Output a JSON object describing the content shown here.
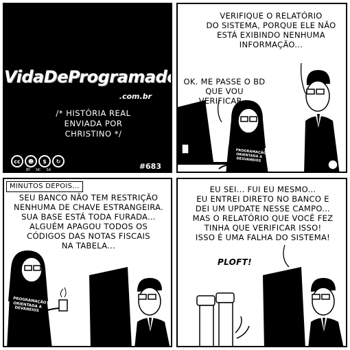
{
  "panel1": {
    "logo": "VidaDeProgramador",
    "domain": ".com.br",
    "story_lines": [
      "/* História real",
      "enviada por",
      "Christino */"
    ],
    "license": {
      "icons": [
        "cc-icon",
        "by-icon",
        "nc-icon",
        "sa-icon"
      ],
      "labels": [
        "BY",
        "NC",
        "SA"
      ]
    },
    "episode": "#683"
  },
  "panel2": {
    "boss_speech": [
      "Verifique o relatório",
      "do sistema, porque ele não",
      "está exibindo nenhuma",
      "informação..."
    ],
    "programmer_speech": [
      "Ok. Me passe o BD",
      "que vou verificar..."
    ],
    "shirt_text": [
      "Programação",
      "Orientada a",
      "Desvaneios"
    ]
  },
  "panel3": {
    "caption": "Minutos depois...",
    "speech": [
      "Seu banco não tem restrição",
      "nenhuma de chave estrangeira.",
      "Sua base está toda furada...",
      "Alguém apagou todos os",
      "códigos das notas fiscais",
      "na tabela..."
    ],
    "shirt_text": [
      "Programação",
      "Orientada a",
      "Devaneios"
    ]
  },
  "panel4": {
    "speech": [
      "Eu sei... Fui eu mesmo...",
      "Eu entrei direto no banco e",
      "dei um update nesse campo...",
      "Mas o relatório que você fez",
      "tinha que verificar isso!",
      "Isso é uma falha do sistema!"
    ],
    "sfx": "PLOFT!"
  }
}
